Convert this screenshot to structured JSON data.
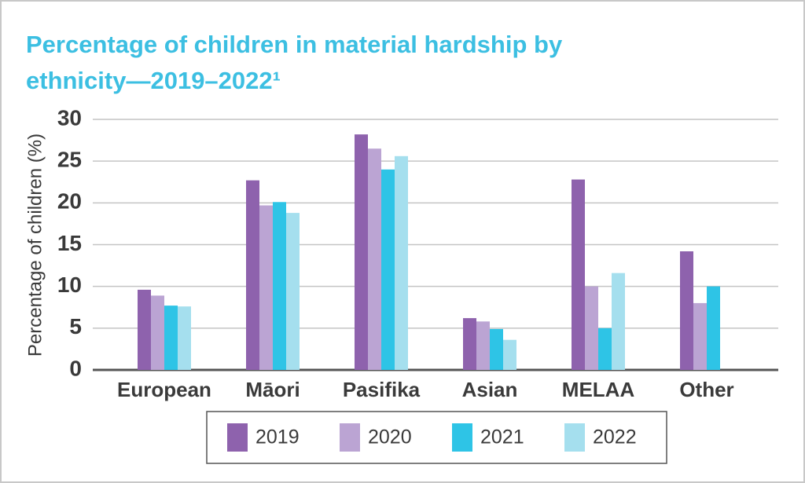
{
  "chart_data": {
    "type": "bar",
    "title": "Percentage of children in material hardship by ethnicity—2019–2022¹",
    "y_label": "Percentage of children (%)",
    "categories": [
      "European",
      "Māori",
      "Pasifika",
      "Asian",
      "MELAA",
      "Other"
    ],
    "series": [
      {
        "name": "2019",
        "color": "#8e62ad",
        "values": [
          9.6,
          22.7,
          28.2,
          6.2,
          22.8,
          14.2
        ]
      },
      {
        "name": "2020",
        "color": "#bba4d3",
        "values": [
          8.9,
          19.7,
          26.5,
          5.8,
          10.0,
          8.0
        ]
      },
      {
        "name": "2021",
        "color": "#2ec4e6",
        "values": [
          7.7,
          20.1,
          24.0,
          4.9,
          5.0,
          10.0
        ]
      },
      {
        "name": "2022",
        "color": "#a5dfee",
        "values": [
          7.6,
          18.8,
          25.6,
          3.6,
          11.6,
          null
        ]
      }
    ],
    "ylim": [
      0,
      30
    ],
    "yticks": [
      0,
      5,
      10,
      15,
      20,
      25,
      30
    ],
    "grid": true
  }
}
